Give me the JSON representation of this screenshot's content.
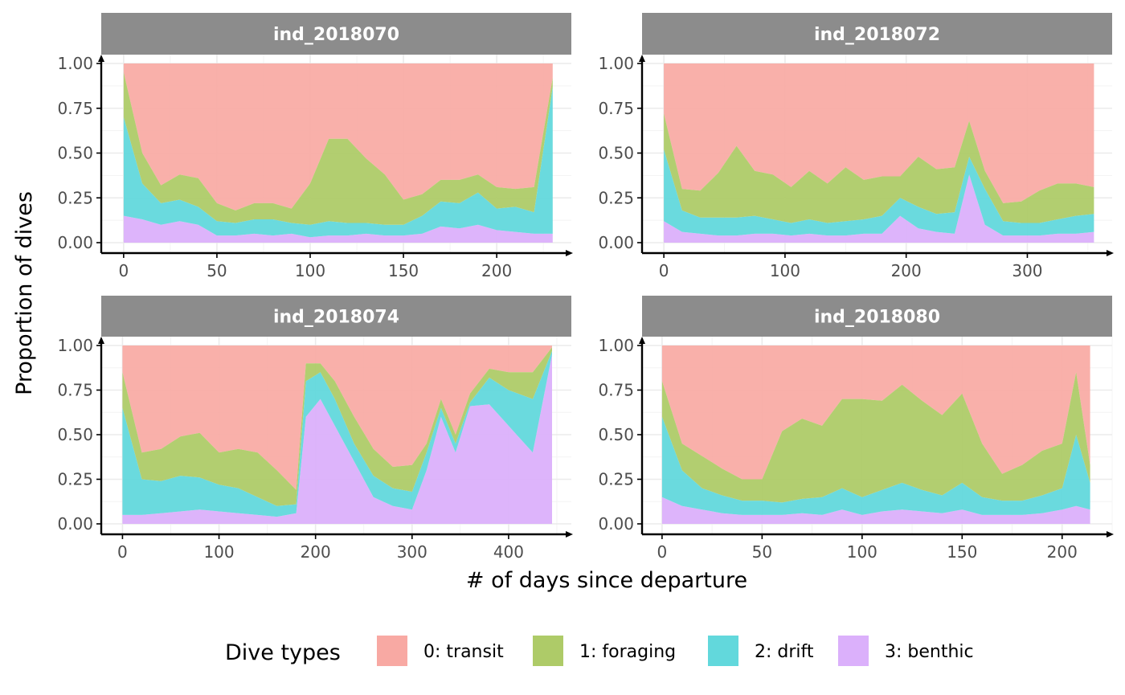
{
  "chart_data": {
    "type": "area",
    "stacked": true,
    "normalized": true,
    "xlabel": "# of days since departure",
    "ylabel": "Proportion of dives",
    "y_ticks": [
      "0.00",
      "0.25",
      "0.50",
      "0.75",
      "1.00"
    ],
    "ylim": [
      0,
      1
    ],
    "grid": true,
    "legend": {
      "title": "Dive types",
      "position": "bottom",
      "entries": [
        {
          "label": "0: transit",
          "color": "#f8a9a3"
        },
        {
          "label": "1: foraging",
          "color": "#aecb68"
        },
        {
          "label": "2: drift",
          "color": "#62d8dc"
        },
        {
          "label": "3: benthic",
          "color": "#dbb0fb"
        }
      ]
    },
    "panels": [
      {
        "id": "ind_2018070",
        "x_ticks": [
          0,
          50,
          100,
          150,
          200
        ],
        "xlim": [
          -12,
          240
        ],
        "xmax_data": 230,
        "points": [
          {
            "x": 0,
            "benthic": 0.15,
            "drift": 0.55,
            "foraging": 0.25
          },
          {
            "x": 10,
            "benthic": 0.13,
            "drift": 0.2,
            "foraging": 0.17
          },
          {
            "x": 20,
            "benthic": 0.1,
            "drift": 0.12,
            "foraging": 0.1
          },
          {
            "x": 30,
            "benthic": 0.12,
            "drift": 0.12,
            "foraging": 0.14
          },
          {
            "x": 40,
            "benthic": 0.1,
            "drift": 0.1,
            "foraging": 0.16
          },
          {
            "x": 50,
            "benthic": 0.04,
            "drift": 0.08,
            "foraging": 0.1
          },
          {
            "x": 60,
            "benthic": 0.04,
            "drift": 0.07,
            "foraging": 0.07
          },
          {
            "x": 70,
            "benthic": 0.05,
            "drift": 0.08,
            "foraging": 0.09
          },
          {
            "x": 80,
            "benthic": 0.04,
            "drift": 0.09,
            "foraging": 0.09
          },
          {
            "x": 90,
            "benthic": 0.05,
            "drift": 0.06,
            "foraging": 0.08
          },
          {
            "x": 100,
            "benthic": 0.03,
            "drift": 0.07,
            "foraging": 0.23
          },
          {
            "x": 110,
            "benthic": 0.04,
            "drift": 0.08,
            "foraging": 0.46
          },
          {
            "x": 120,
            "benthic": 0.04,
            "drift": 0.07,
            "foraging": 0.47
          },
          {
            "x": 130,
            "benthic": 0.05,
            "drift": 0.06,
            "foraging": 0.36
          },
          {
            "x": 140,
            "benthic": 0.04,
            "drift": 0.06,
            "foraging": 0.28
          },
          {
            "x": 150,
            "benthic": 0.04,
            "drift": 0.06,
            "foraging": 0.14
          },
          {
            "x": 160,
            "benthic": 0.05,
            "drift": 0.1,
            "foraging": 0.12
          },
          {
            "x": 170,
            "benthic": 0.09,
            "drift": 0.14,
            "foraging": 0.12
          },
          {
            "x": 180,
            "benthic": 0.08,
            "drift": 0.14,
            "foraging": 0.13
          },
          {
            "x": 190,
            "benthic": 0.1,
            "drift": 0.18,
            "foraging": 0.1
          },
          {
            "x": 200,
            "benthic": 0.07,
            "drift": 0.12,
            "foraging": 0.12
          },
          {
            "x": 210,
            "benthic": 0.06,
            "drift": 0.14,
            "foraging": 0.1
          },
          {
            "x": 220,
            "benthic": 0.05,
            "drift": 0.12,
            "foraging": 0.14
          },
          {
            "x": 230,
            "benthic": 0.05,
            "drift": 0.82,
            "foraging": 0.05
          }
        ]
      },
      {
        "id": "ind_2018072",
        "x_ticks": [
          0,
          100,
          200,
          300
        ],
        "xlim": [
          -18,
          370
        ],
        "xmax_data": 355,
        "points": [
          {
            "x": 0,
            "benthic": 0.12,
            "drift": 0.4,
            "foraging": 0.2
          },
          {
            "x": 15,
            "benthic": 0.06,
            "drift": 0.12,
            "foraging": 0.12
          },
          {
            "x": 30,
            "benthic": 0.05,
            "drift": 0.09,
            "foraging": 0.15
          },
          {
            "x": 45,
            "benthic": 0.04,
            "drift": 0.1,
            "foraging": 0.25
          },
          {
            "x": 60,
            "benthic": 0.04,
            "drift": 0.1,
            "foraging": 0.4
          },
          {
            "x": 75,
            "benthic": 0.05,
            "drift": 0.1,
            "foraging": 0.25
          },
          {
            "x": 90,
            "benthic": 0.05,
            "drift": 0.08,
            "foraging": 0.25
          },
          {
            "x": 105,
            "benthic": 0.04,
            "drift": 0.07,
            "foraging": 0.2
          },
          {
            "x": 120,
            "benthic": 0.05,
            "drift": 0.08,
            "foraging": 0.27
          },
          {
            "x": 135,
            "benthic": 0.04,
            "drift": 0.07,
            "foraging": 0.22
          },
          {
            "x": 150,
            "benthic": 0.04,
            "drift": 0.08,
            "foraging": 0.3
          },
          {
            "x": 165,
            "benthic": 0.05,
            "drift": 0.08,
            "foraging": 0.22
          },
          {
            "x": 180,
            "benthic": 0.05,
            "drift": 0.1,
            "foraging": 0.22
          },
          {
            "x": 195,
            "benthic": 0.15,
            "drift": 0.1,
            "foraging": 0.12
          },
          {
            "x": 210,
            "benthic": 0.08,
            "drift": 0.12,
            "foraging": 0.28
          },
          {
            "x": 225,
            "benthic": 0.06,
            "drift": 0.1,
            "foraging": 0.25
          },
          {
            "x": 240,
            "benthic": 0.05,
            "drift": 0.12,
            "foraging": 0.25
          },
          {
            "x": 252,
            "benthic": 0.38,
            "drift": 0.1,
            "foraging": 0.2
          },
          {
            "x": 265,
            "benthic": 0.1,
            "drift": 0.2,
            "foraging": 0.1
          },
          {
            "x": 280,
            "benthic": 0.04,
            "drift": 0.08,
            "foraging": 0.1
          },
          {
            "x": 295,
            "benthic": 0.04,
            "drift": 0.07,
            "foraging": 0.12
          },
          {
            "x": 310,
            "benthic": 0.04,
            "drift": 0.07,
            "foraging": 0.18
          },
          {
            "x": 325,
            "benthic": 0.05,
            "drift": 0.08,
            "foraging": 0.2
          },
          {
            "x": 340,
            "benthic": 0.05,
            "drift": 0.1,
            "foraging": 0.18
          },
          {
            "x": 355,
            "benthic": 0.06,
            "drift": 0.1,
            "foraging": 0.15
          }
        ]
      },
      {
        "id": "ind_2018074",
        "x_ticks": [
          0,
          100,
          200,
          300,
          400
        ],
        "xlim": [
          -22,
          465
        ],
        "xmax_data": 445,
        "points": [
          {
            "x": 0,
            "benthic": 0.05,
            "drift": 0.6,
            "foraging": 0.2
          },
          {
            "x": 20,
            "benthic": 0.05,
            "drift": 0.2,
            "foraging": 0.15
          },
          {
            "x": 40,
            "benthic": 0.06,
            "drift": 0.18,
            "foraging": 0.18
          },
          {
            "x": 60,
            "benthic": 0.07,
            "drift": 0.2,
            "foraging": 0.22
          },
          {
            "x": 80,
            "benthic": 0.08,
            "drift": 0.18,
            "foraging": 0.25
          },
          {
            "x": 100,
            "benthic": 0.07,
            "drift": 0.15,
            "foraging": 0.18
          },
          {
            "x": 120,
            "benthic": 0.06,
            "drift": 0.14,
            "foraging": 0.22
          },
          {
            "x": 140,
            "benthic": 0.05,
            "drift": 0.1,
            "foraging": 0.25
          },
          {
            "x": 160,
            "benthic": 0.04,
            "drift": 0.06,
            "foraging": 0.2
          },
          {
            "x": 180,
            "benthic": 0.06,
            "drift": 0.05,
            "foraging": 0.08
          },
          {
            "x": 190,
            "benthic": 0.6,
            "drift": 0.2,
            "foraging": 0.1
          },
          {
            "x": 205,
            "benthic": 0.7,
            "drift": 0.15,
            "foraging": 0.05
          },
          {
            "x": 220,
            "benthic": 0.55,
            "drift": 0.15,
            "foraging": 0.1
          },
          {
            "x": 240,
            "benthic": 0.35,
            "drift": 0.1,
            "foraging": 0.15
          },
          {
            "x": 260,
            "benthic": 0.15,
            "drift": 0.12,
            "foraging": 0.15
          },
          {
            "x": 280,
            "benthic": 0.1,
            "drift": 0.1,
            "foraging": 0.12
          },
          {
            "x": 300,
            "benthic": 0.08,
            "drift": 0.1,
            "foraging": 0.15
          },
          {
            "x": 315,
            "benthic": 0.3,
            "drift": 0.1,
            "foraging": 0.05
          },
          {
            "x": 330,
            "benthic": 0.6,
            "drift": 0.05,
            "foraging": 0.05
          },
          {
            "x": 345,
            "benthic": 0.4,
            "drift": 0.05,
            "foraging": 0.05
          },
          {
            "x": 360,
            "benthic": 0.66,
            "drift": 0.02,
            "foraging": 0.05
          },
          {
            "x": 380,
            "benthic": 0.67,
            "drift": 0.15,
            "foraging": 0.05
          },
          {
            "x": 400,
            "benthic": 0.55,
            "drift": 0.2,
            "foraging": 0.1
          },
          {
            "x": 425,
            "benthic": 0.4,
            "drift": 0.3,
            "foraging": 0.15
          },
          {
            "x": 445,
            "benthic": 0.95,
            "drift": 0.02,
            "foraging": 0.02
          }
        ]
      },
      {
        "id": "ind_2018080",
        "x_ticks": [
          0,
          50,
          100,
          150,
          200
        ],
        "xlim": [
          -10,
          225
        ],
        "xmax_data": 214,
        "points": [
          {
            "x": 0,
            "benthic": 0.15,
            "drift": 0.45,
            "foraging": 0.2
          },
          {
            "x": 10,
            "benthic": 0.1,
            "drift": 0.2,
            "foraging": 0.15
          },
          {
            "x": 20,
            "benthic": 0.08,
            "drift": 0.12,
            "foraging": 0.18
          },
          {
            "x": 30,
            "benthic": 0.06,
            "drift": 0.1,
            "foraging": 0.15
          },
          {
            "x": 40,
            "benthic": 0.05,
            "drift": 0.08,
            "foraging": 0.12
          },
          {
            "x": 50,
            "benthic": 0.05,
            "drift": 0.08,
            "foraging": 0.12
          },
          {
            "x": 60,
            "benthic": 0.05,
            "drift": 0.07,
            "foraging": 0.4
          },
          {
            "x": 70,
            "benthic": 0.06,
            "drift": 0.08,
            "foraging": 0.45
          },
          {
            "x": 80,
            "benthic": 0.05,
            "drift": 0.1,
            "foraging": 0.4
          },
          {
            "x": 90,
            "benthic": 0.08,
            "drift": 0.12,
            "foraging": 0.5
          },
          {
            "x": 100,
            "benthic": 0.05,
            "drift": 0.1,
            "foraging": 0.55
          },
          {
            "x": 110,
            "benthic": 0.07,
            "drift": 0.12,
            "foraging": 0.5
          },
          {
            "x": 120,
            "benthic": 0.08,
            "drift": 0.15,
            "foraging": 0.55
          },
          {
            "x": 130,
            "benthic": 0.07,
            "drift": 0.12,
            "foraging": 0.5
          },
          {
            "x": 140,
            "benthic": 0.06,
            "drift": 0.1,
            "foraging": 0.45
          },
          {
            "x": 150,
            "benthic": 0.08,
            "drift": 0.15,
            "foraging": 0.5
          },
          {
            "x": 160,
            "benthic": 0.05,
            "drift": 0.1,
            "foraging": 0.3
          },
          {
            "x": 170,
            "benthic": 0.05,
            "drift": 0.08,
            "foraging": 0.15
          },
          {
            "x": 180,
            "benthic": 0.05,
            "drift": 0.08,
            "foraging": 0.2
          },
          {
            "x": 190,
            "benthic": 0.06,
            "drift": 0.1,
            "foraging": 0.25
          },
          {
            "x": 200,
            "benthic": 0.08,
            "drift": 0.12,
            "foraging": 0.25
          },
          {
            "x": 207,
            "benthic": 0.1,
            "drift": 0.4,
            "foraging": 0.35
          },
          {
            "x": 214,
            "benthic": 0.08,
            "drift": 0.15,
            "foraging": 0.1
          }
        ]
      }
    ]
  }
}
